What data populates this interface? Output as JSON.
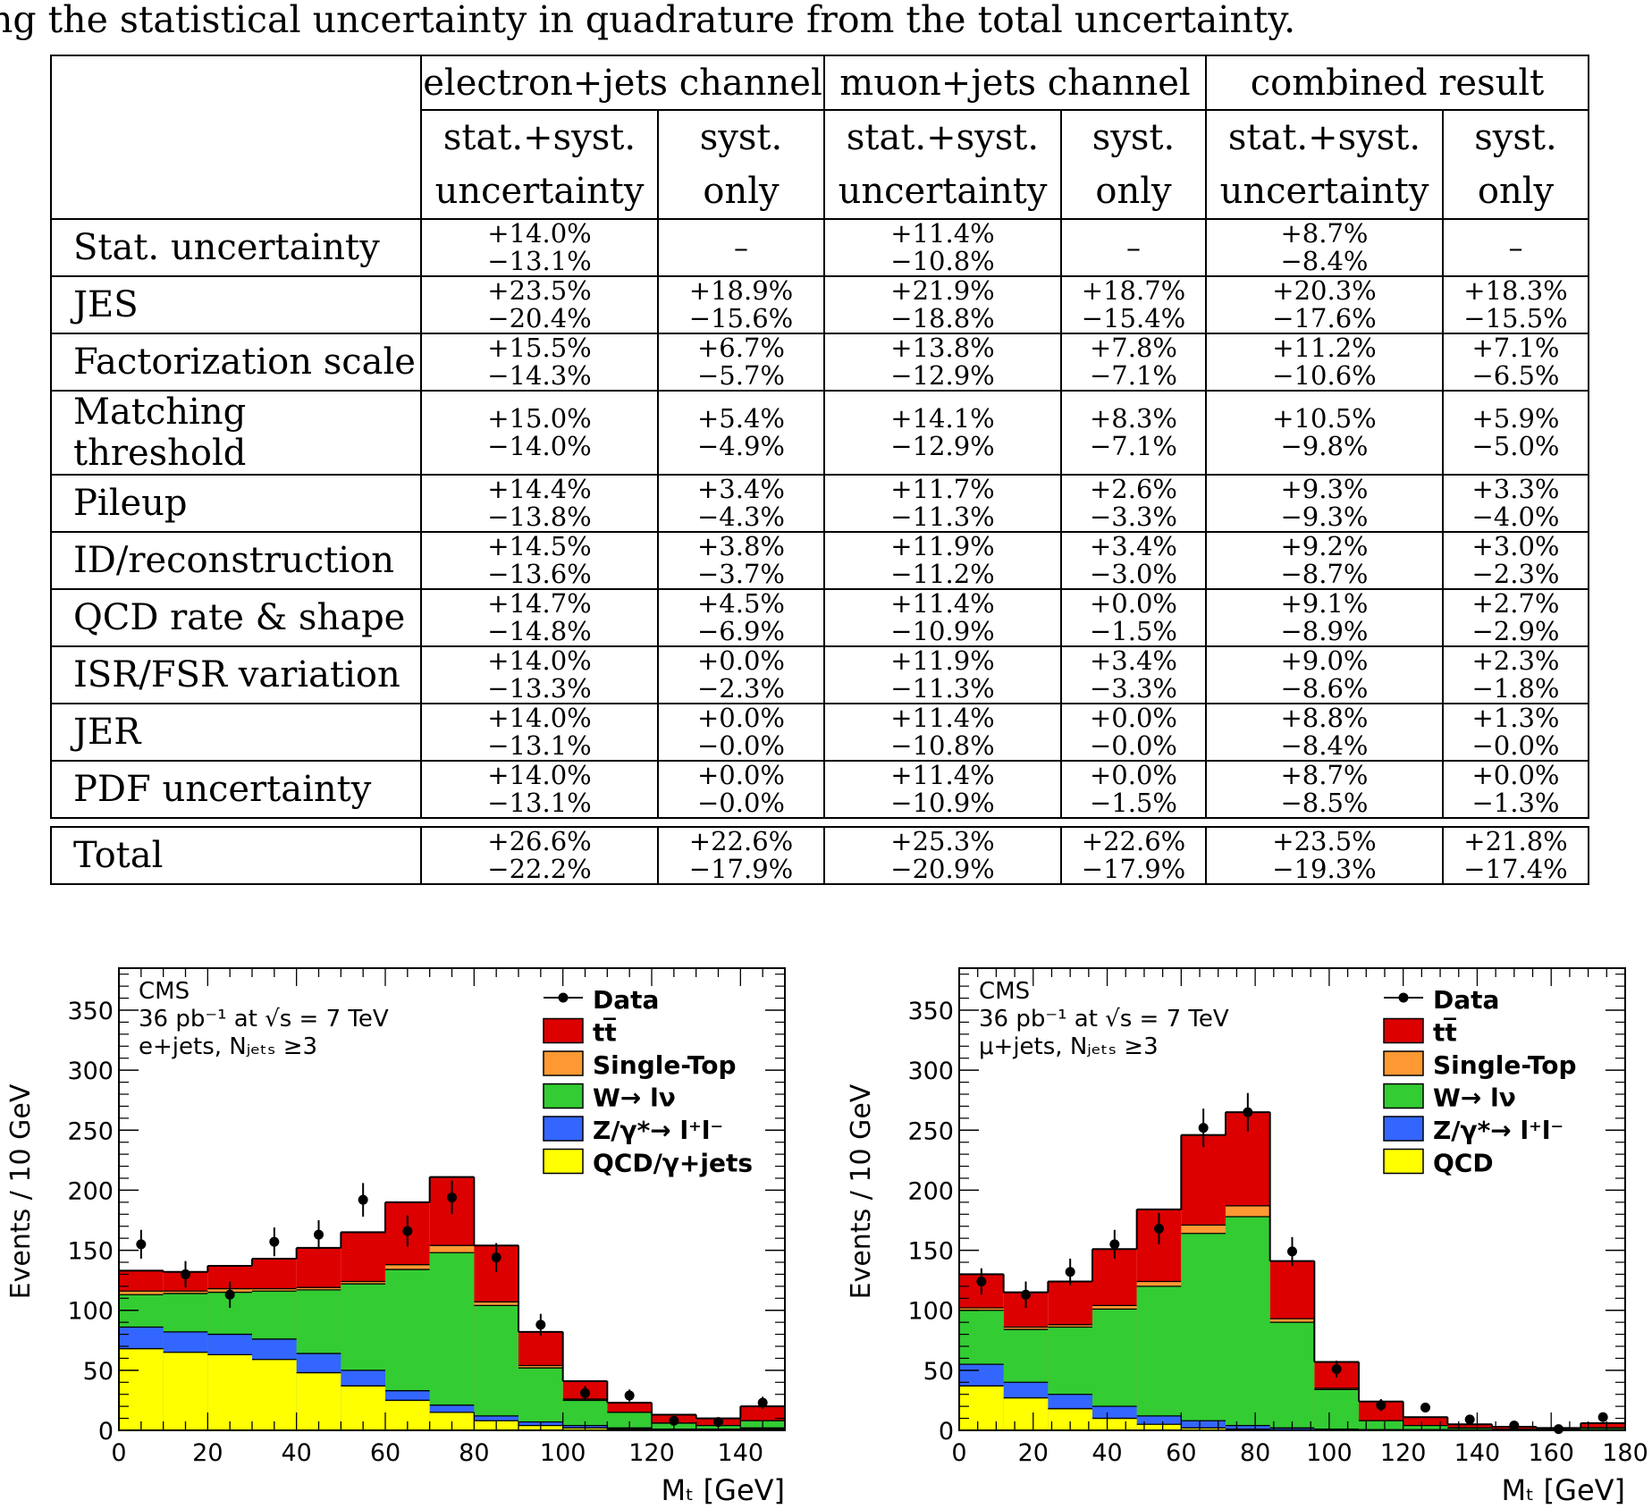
{
  "intro_text": "ng the statistical uncertainty in quadrature from the total uncertainty.",
  "table": {
    "groups": [
      "electron+jets channel",
      "muon+jets channel",
      "combined result"
    ],
    "sub": [
      [
        "stat.+syst.",
        "uncertainty"
      ],
      [
        "syst.",
        "only"
      ],
      [
        "stat.+syst.",
        "uncertainty"
      ],
      [
        "syst.",
        "only"
      ],
      [
        "stat.+syst.",
        "uncertainty"
      ],
      [
        "syst.",
        "only"
      ]
    ],
    "rows": [
      {
        "label": "Stat. uncertainty",
        "cells": [
          [
            "+14.0%",
            "−13.1%"
          ],
          "–",
          [
            "+11.4%",
            "−10.8%"
          ],
          "–",
          [
            "+8.7%",
            "−8.4%"
          ],
          "–"
        ]
      },
      {
        "label": "JES",
        "cells": [
          [
            "+23.5%",
            "−20.4%"
          ],
          [
            "+18.9%",
            "−15.6%"
          ],
          [
            "+21.9%",
            "−18.8%"
          ],
          [
            "+18.7%",
            "−15.4%"
          ],
          [
            "+20.3%",
            "−17.6%"
          ],
          [
            "+18.3%",
            "−15.5%"
          ]
        ]
      },
      {
        "label": "Factorization scale",
        "cells": [
          [
            "+15.5%",
            "−14.3%"
          ],
          [
            "+6.7%",
            "−5.7%"
          ],
          [
            "+13.8%",
            "−12.9%"
          ],
          [
            "+7.8%",
            "−7.1%"
          ],
          [
            "+11.2%",
            "−10.6%"
          ],
          [
            "+7.1%",
            "−6.5%"
          ]
        ]
      },
      {
        "label": "Matching threshold",
        "cells": [
          [
            "+15.0%",
            "−14.0%"
          ],
          [
            "+5.4%",
            "−4.9%"
          ],
          [
            "+14.1%",
            "−12.9%"
          ],
          [
            "+8.3%",
            "−7.1%"
          ],
          [
            "+10.5%",
            "−9.8%"
          ],
          [
            "+5.9%",
            "−5.0%"
          ]
        ]
      },
      {
        "label": "Pileup",
        "cells": [
          [
            "+14.4%",
            "−13.8%"
          ],
          [
            "+3.4%",
            "−4.3%"
          ],
          [
            "+11.7%",
            "−11.3%"
          ],
          [
            "+2.6%",
            "−3.3%"
          ],
          [
            "+9.3%",
            "−9.3%"
          ],
          [
            "+3.3%",
            "−4.0%"
          ]
        ]
      },
      {
        "label": "ID/reconstruction",
        "cells": [
          [
            "+14.5%",
            "−13.6%"
          ],
          [
            "+3.8%",
            "−3.7%"
          ],
          [
            "+11.9%",
            "−11.2%"
          ],
          [
            "+3.4%",
            "−3.0%"
          ],
          [
            "+9.2%",
            "−8.7%"
          ],
          [
            "+3.0%",
            "−2.3%"
          ]
        ]
      },
      {
        "label": "QCD rate & shape",
        "cells": [
          [
            "+14.7%",
            "−14.8%"
          ],
          [
            "+4.5%",
            "−6.9%"
          ],
          [
            "+11.4%",
            "−10.9%"
          ],
          [
            "+0.0%",
            "−1.5%"
          ],
          [
            "+9.1%",
            "−8.9%"
          ],
          [
            "+2.7%",
            "−2.9%"
          ]
        ]
      },
      {
        "label": "ISR/FSR variation",
        "cells": [
          [
            "+14.0%",
            "−13.3%"
          ],
          [
            "+0.0%",
            "−2.3%"
          ],
          [
            "+11.9%",
            "−11.3%"
          ],
          [
            "+3.4%",
            "−3.3%"
          ],
          [
            "+9.0%",
            "−8.6%"
          ],
          [
            "+2.3%",
            "−1.8%"
          ]
        ]
      },
      {
        "label": "JER",
        "cells": [
          [
            "+14.0%",
            "−13.1%"
          ],
          [
            "+0.0%",
            "−0.0%"
          ],
          [
            "+11.4%",
            "−10.8%"
          ],
          [
            "+0.0%",
            "−0.0%"
          ],
          [
            "+8.8%",
            "−8.4%"
          ],
          [
            "+1.3%",
            "−0.0%"
          ]
        ]
      },
      {
        "label": "PDF uncertainty",
        "cells": [
          [
            "+14.0%",
            "−13.1%"
          ],
          [
            "+0.0%",
            "−0.0%"
          ],
          [
            "+11.4%",
            "−10.9%"
          ],
          [
            "+0.0%",
            "−1.5%"
          ],
          [
            "+8.7%",
            "−8.5%"
          ],
          [
            "+0.0%",
            "−1.3%"
          ]
        ]
      }
    ],
    "total": {
      "label": "Total",
      "cells": [
        [
          "+26.6%",
          "−22.2%"
        ],
        [
          "+22.6%",
          "−17.9%"
        ],
        [
          "+25.3%",
          "−20.9%"
        ],
        [
          "+22.6%",
          "−17.9%"
        ],
        [
          "+23.5%",
          "−19.3%"
        ],
        [
          "+21.8%",
          "−17.4%"
        ]
      ]
    }
  },
  "colors": {
    "data": "#000000",
    "ttbar": "#dd0000",
    "singletop": "#ff9933",
    "wlnu": "#33cc33",
    "zll": "#3366ff",
    "qcd": "#ffff00"
  },
  "chart_data": [
    {
      "type": "stacked-bar",
      "title": "",
      "cms_label": "CMS",
      "lumi_label": "36 pb⁻¹ at √s = 7 TeV",
      "channel_label": "e+jets, Nⱼₑₜₛ ≥3",
      "xlabel": "Mₜ [GeV]",
      "ylabel": "Events / 10 GeV",
      "xlim": [
        0,
        150
      ],
      "ylim": [
        0,
        385
      ],
      "xticks": [
        0,
        20,
        40,
        60,
        80,
        100,
        120,
        140
      ],
      "yticks": [
        0,
        50,
        100,
        150,
        200,
        250,
        300,
        350
      ],
      "bin_edges": [
        0,
        10,
        20,
        30,
        40,
        50,
        60,
        70,
        80,
        90,
        100,
        110,
        120,
        130,
        140,
        150
      ],
      "legend_position": "top-right",
      "legend": [
        "Data",
        "tt̅",
        "Single-Top",
        "W→ lν",
        "Z/γ*→ l⁺l⁻",
        "QCD/γ+jets"
      ],
      "series_keys": [
        "qcd",
        "zll",
        "wlnu",
        "singletop",
        "ttbar"
      ],
      "stack_cumulative": {
        "qcd": [
          68,
          65,
          63,
          59,
          48,
          37,
          25,
          15,
          8,
          4,
          2,
          1,
          0.5,
          0.5,
          1
        ],
        "zll": [
          86,
          82,
          80,
          76,
          64,
          50,
          33,
          21,
          12,
          7,
          4,
          2,
          1,
          1,
          2
        ],
        "wlnu": [
          113,
          114,
          115,
          116,
          117,
          122,
          134,
          148,
          104,
          52,
          25,
          15,
          6,
          4,
          8
        ],
        "singletop": [
          116,
          116,
          118,
          118,
          119,
          124,
          138,
          154,
          107,
          54,
          26,
          15,
          6,
          4,
          8
        ],
        "ttbar": [
          133,
          132,
          137,
          143,
          152,
          165,
          190,
          211,
          154,
          82,
          41,
          23,
          13,
          10,
          20
        ]
      },
      "data": [
        155,
        130,
        113,
        157,
        163,
        192,
        166,
        194,
        144,
        88,
        31,
        29,
        8,
        7,
        23
      ],
      "data_err": [
        12,
        11,
        11,
        12,
        12,
        14,
        13,
        14,
        12,
        9,
        6,
        5,
        3,
        3,
        5
      ]
    },
    {
      "type": "stacked-bar",
      "title": "",
      "cms_label": "CMS",
      "lumi_label": "36 pb⁻¹ at √s = 7 TeV",
      "channel_label": "μ+jets, Nⱼₑₜₛ ≥3",
      "xlabel": "Mₜ [GeV]",
      "ylabel": "Events / 10 GeV",
      "xlim": [
        0,
        180
      ],
      "ylim": [
        0,
        385
      ],
      "xticks": [
        0,
        20,
        40,
        60,
        80,
        100,
        120,
        140,
        160,
        180
      ],
      "yticks": [
        0,
        50,
        100,
        150,
        200,
        250,
        300,
        350
      ],
      "bin_edges": [
        0,
        12,
        24,
        36,
        48,
        60,
        72,
        84,
        96,
        108,
        120,
        132,
        144,
        156,
        168,
        180
      ],
      "legend_position": "top-right",
      "legend": [
        "Data",
        "tt̅",
        "Single-Top",
        "W→ lν",
        "Z/γ*→ l⁺l⁻",
        "QCD"
      ],
      "series_keys": [
        "qcd",
        "zll",
        "wlnu",
        "singletop",
        "ttbar"
      ],
      "stack_cumulative": {
        "qcd": [
          37,
          27,
          18,
          10,
          5,
          2,
          1,
          0.5,
          0.5,
          0.5,
          0.5,
          0.5,
          0.5,
          0.5,
          0.5
        ],
        "zll": [
          55,
          40,
          30,
          20,
          12,
          8,
          4,
          2,
          1,
          0.5,
          0.5,
          0.5,
          0.5,
          0.5,
          0.5
        ],
        "wlnu": [
          100,
          84,
          86,
          101,
          120,
          164,
          178,
          90,
          34,
          8,
          4,
          2,
          1,
          1,
          2
        ],
        "singletop": [
          102,
          86,
          88,
          104,
          124,
          171,
          187,
          93,
          35,
          8,
          4,
          2,
          1,
          1,
          2
        ],
        "ttbar": [
          130,
          115,
          124,
          151,
          184,
          246,
          265,
          141,
          57,
          24,
          11,
          5,
          3,
          2,
          6
        ]
      },
      "data": [
        124,
        113,
        132,
        155,
        168,
        252,
        265,
        149,
        51,
        21,
        19,
        9,
        4,
        1,
        11
      ],
      "data_err": [
        11,
        11,
        11,
        12,
        13,
        16,
        16,
        12,
        7,
        5,
        4,
        3,
        2,
        1,
        3
      ]
    }
  ]
}
